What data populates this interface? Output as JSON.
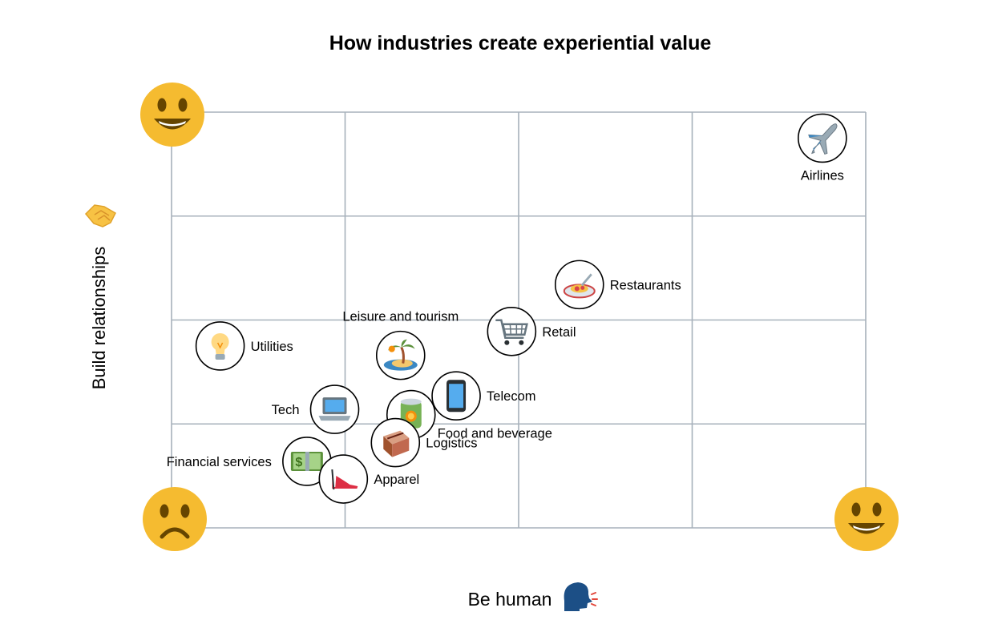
{
  "chart_data": {
    "type": "scatter",
    "title": "How industries create experiential value",
    "xlabel": "Be human",
    "ylabel": "Build relationships",
    "xlim": [
      0,
      4
    ],
    "ylim": [
      0,
      4
    ],
    "grid": true,
    "points": [
      {
        "name": "Airlines",
        "x": 3.75,
        "y": 3.75,
        "icon": "airplane-icon",
        "label_pos": "below"
      },
      {
        "name": "Restaurants",
        "x": 2.35,
        "y": 2.34,
        "icon": "spaghetti-icon",
        "label_pos": "right"
      },
      {
        "name": "Retail",
        "x": 1.96,
        "y": 1.89,
        "icon": "shopping-cart-icon",
        "label_pos": "right"
      },
      {
        "name": "Utilities",
        "x": 0.28,
        "y": 1.75,
        "icon": "light-bulb-icon",
        "label_pos": "right"
      },
      {
        "name": "Leisure and tourism",
        "x": 1.32,
        "y": 1.66,
        "icon": "island-icon",
        "label_pos": "above"
      },
      {
        "name": "Telecom",
        "x": 1.64,
        "y": 1.27,
        "icon": "mobile-phone-icon",
        "label_pos": "right"
      },
      {
        "name": "Tech",
        "x": 0.94,
        "y": 1.14,
        "icon": "laptop-icon",
        "label_pos": "left"
      },
      {
        "name": "Food and beverage",
        "x": 1.38,
        "y": 1.09,
        "icon": "canned-food-icon",
        "label_pos": "below-right"
      },
      {
        "name": "Logistics",
        "x": 1.29,
        "y": 0.82,
        "icon": "package-icon",
        "label_pos": "right"
      },
      {
        "name": "Financial services",
        "x": 0.78,
        "y": 0.64,
        "icon": "money-icon",
        "label_pos": "left"
      },
      {
        "name": "Apparel",
        "x": 0.99,
        "y": 0.47,
        "icon": "high-heel-icon",
        "label_pos": "right"
      }
    ],
    "corner_icons": {
      "top_left": "grinning-face-icon",
      "bottom_left": "frowning-face-icon",
      "bottom_right": "grinning-face-icon"
    },
    "ylabel_icon": "handshake-icon",
    "xlabel_icon": "speaking-head-icon"
  }
}
